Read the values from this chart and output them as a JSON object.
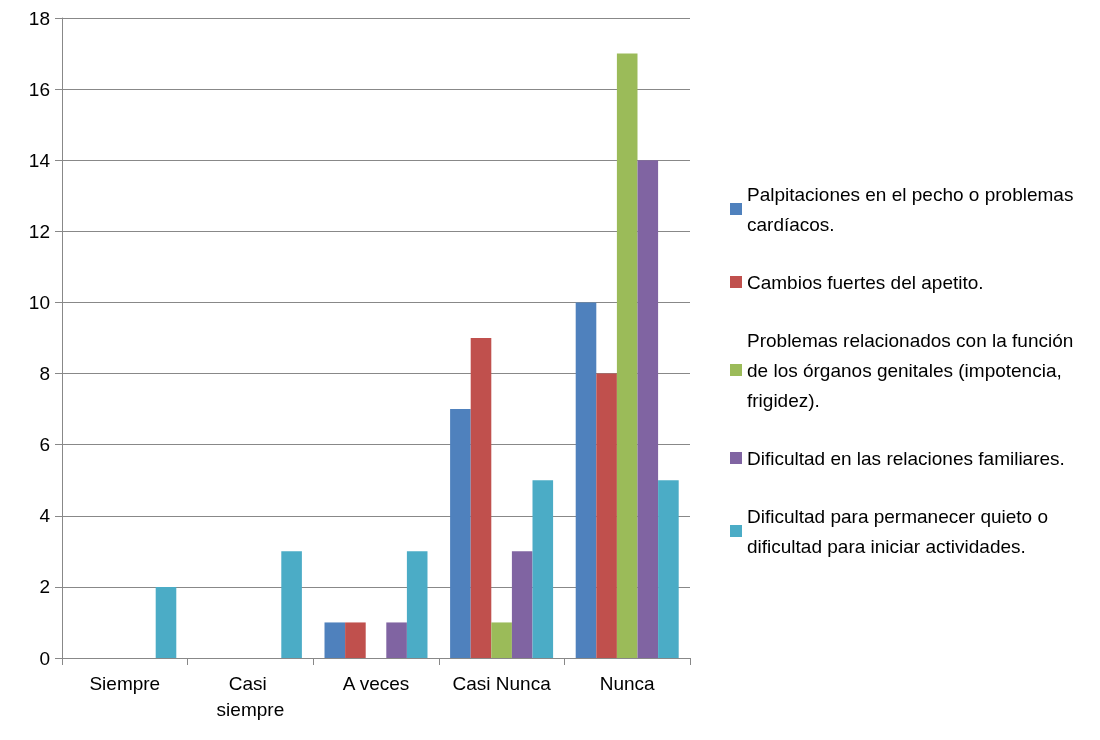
{
  "chart_data": {
    "type": "bar",
    "categories": [
      "Siempre",
      "Casi siempre",
      "A veces",
      "Casi Nunca",
      "Nunca"
    ],
    "series": [
      {
        "name": "Palpitaciones en el pecho o problemas cardíacos.",
        "color": "#4f81bd",
        "values": [
          0,
          0,
          1,
          7,
          10
        ]
      },
      {
        "name": "Cambios fuertes del apetito.",
        "color": "#c0504d",
        "values": [
          0,
          0,
          1,
          9,
          8
        ]
      },
      {
        "name": "Problemas relacionados con la función de los órganos genitales (impotencia, frigidez).",
        "color": "#9bbb59",
        "values": [
          0,
          0,
          0,
          1,
          17
        ]
      },
      {
        "name": "Dificultad en las relaciones familiares.",
        "color": "#8064a2",
        "values": [
          0,
          0,
          1,
          3,
          14
        ]
      },
      {
        "name": "Dificultad para permanecer quieto o dificultad para iniciar actividades.",
        "color": "#4bacc6",
        "values": [
          2,
          3,
          3,
          5,
          5
        ]
      }
    ],
    "ylim": [
      0,
      18
    ],
    "yticks": [
      0,
      2,
      4,
      6,
      8,
      10,
      12,
      14,
      16,
      18
    ],
    "grid": "y",
    "legend": "right"
  }
}
